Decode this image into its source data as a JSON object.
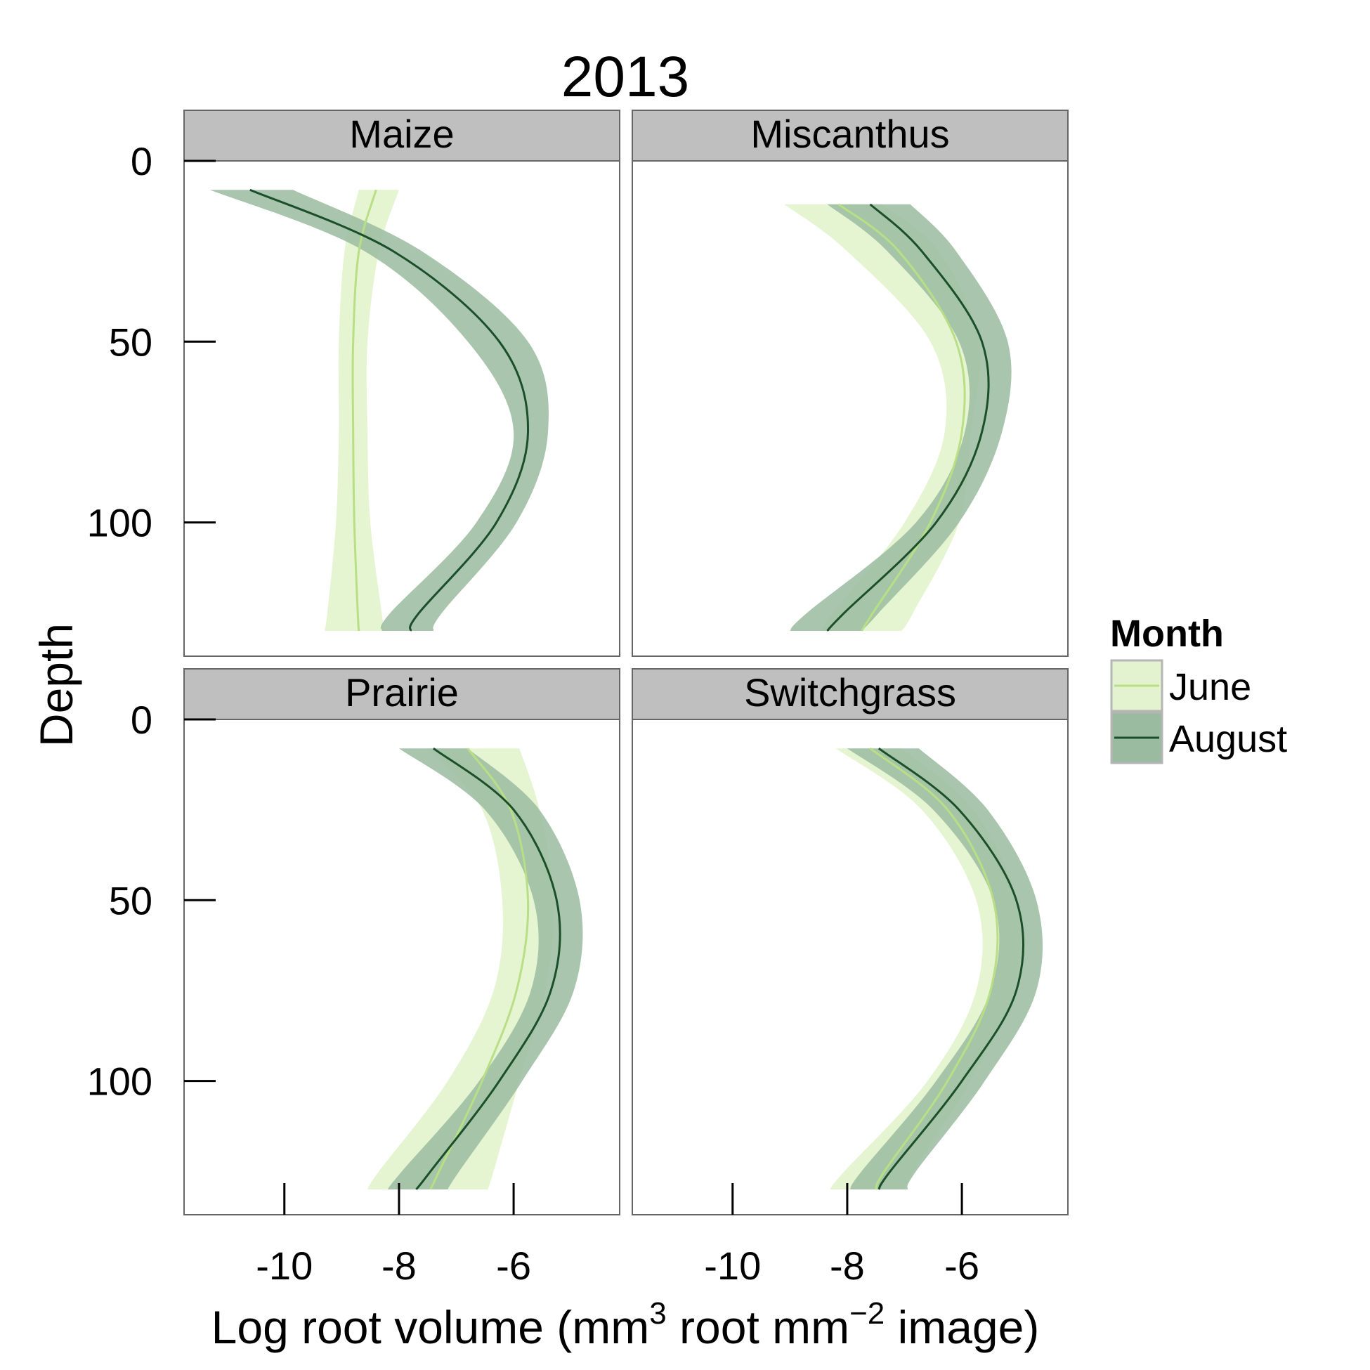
{
  "chart_data": {
    "type": "line",
    "title": "2013",
    "xlabel": {
      "base": "Log root volume (mm",
      "sup1": "3",
      "mid": " root mm",
      "sup2": "−2",
      "end": " image)"
    },
    "ylabel": "Depth",
    "xlim": [
      -11.75,
      -4.15
    ],
    "ylim": [
      0,
      137
    ],
    "y_reversed": true,
    "x_ticks": [
      -10,
      -8,
      -6
    ],
    "y_ticks": [
      0,
      50,
      100
    ],
    "legend": {
      "title": "Month",
      "position": "right",
      "items": [
        {
          "name": "June",
          "line": "#b9df86",
          "fill": "#e4f3cf"
        },
        {
          "name": "August",
          "line": "#1b4f2a",
          "fill": "#9bbba0"
        }
      ]
    },
    "panels": [
      {
        "name": "Maize",
        "series": [
          {
            "name": "June",
            "depth": [
              8,
              25,
              50,
              75,
              100,
              125,
              130
            ],
            "x": [
              -8.4,
              -8.7,
              -8.8,
              -8.8,
              -8.78,
              -8.72,
              -8.7
            ],
            "lower": [
              -8.7,
              -8.95,
              -9.05,
              -9.05,
              -9.1,
              -9.25,
              -9.3
            ],
            "upper": [
              -8.0,
              -8.35,
              -8.55,
              -8.55,
              -8.5,
              -8.3,
              -8.25
            ]
          },
          {
            "name": "August",
            "depth": [
              8,
              25,
              50,
              75,
              100,
              125,
              130
            ],
            "x": [
              -10.6,
              -8.1,
              -6.25,
              -5.75,
              -6.3,
              -7.65,
              -7.8
            ],
            "lower": [
              -11.3,
              -8.6,
              -6.8,
              -6.0,
              -6.65,
              -8.15,
              -8.3
            ],
            "upper": [
              -9.85,
              -7.6,
              -5.75,
              -5.4,
              -5.95,
              -7.25,
              -7.4
            ]
          }
        ]
      },
      {
        "name": "Miscanthus",
        "series": [
          {
            "name": "June",
            "depth": [
              12,
              25,
              50,
              75,
              100,
              125,
              130
            ],
            "x": [
              -8.15,
              -7.1,
              -6.1,
              -6.0,
              -6.55,
              -7.55,
              -7.75
            ],
            "lower": [
              -9.1,
              -8.0,
              -6.55,
              -6.3,
              -7.0,
              -8.25,
              -8.45
            ],
            "upper": [
              -7.4,
              -6.4,
              -5.7,
              -5.85,
              -6.05,
              -6.85,
              -7.05
            ]
          },
          {
            "name": "August",
            "depth": [
              12,
              25,
              50,
              75,
              100,
              125,
              130
            ],
            "x": [
              -7.6,
              -6.7,
              -5.65,
              -5.65,
              -6.45,
              -8.05,
              -8.35
            ],
            "lower": [
              -8.35,
              -7.3,
              -6.05,
              -5.95,
              -6.8,
              -8.7,
              -9.0
            ],
            "upper": [
              -6.9,
              -6.1,
              -5.2,
              -5.3,
              -6.05,
              -7.45,
              -7.75
            ]
          }
        ]
      },
      {
        "name": "Prairie",
        "series": [
          {
            "name": "June",
            "depth": [
              8,
              25,
              50,
              75,
              100,
              125,
              130
            ],
            "x": [
              -6.8,
              -6.05,
              -5.75,
              -5.95,
              -6.55,
              -7.3,
              -7.45
            ],
            "lower": [
              -7.5,
              -6.55,
              -6.2,
              -6.35,
              -7.15,
              -8.35,
              -8.55
            ],
            "upper": [
              -5.9,
              -5.55,
              -5.3,
              -5.45,
              -5.9,
              -6.35,
              -6.45
            ]
          },
          {
            "name": "August",
            "depth": [
              8,
              25,
              50,
              75,
              100,
              125,
              130
            ],
            "x": [
              -7.4,
              -6.0,
              -5.25,
              -5.35,
              -6.25,
              -7.45,
              -7.7
            ],
            "lower": [
              -8.0,
              -6.5,
              -5.65,
              -5.7,
              -6.6,
              -7.95,
              -8.2
            ],
            "upper": [
              -6.8,
              -5.55,
              -4.85,
              -4.95,
              -5.85,
              -6.95,
              -7.15
            ]
          }
        ]
      },
      {
        "name": "Switchgrass",
        "series": [
          {
            "name": "June",
            "depth": [
              8,
              25,
              50,
              75,
              100,
              125,
              130
            ],
            "x": [
              -7.6,
              -6.25,
              -5.45,
              -5.5,
              -6.25,
              -7.35,
              -7.5
            ],
            "lower": [
              -8.2,
              -6.7,
              -5.75,
              -5.75,
              -6.6,
              -8.05,
              -8.3
            ],
            "upper": [
              -7.05,
              -5.8,
              -5.05,
              -5.1,
              -5.85,
              -6.85,
              -7.0
            ]
          },
          {
            "name": "August",
            "depth": [
              8,
              25,
              50,
              75,
              100,
              125,
              130
            ],
            "x": [
              -7.45,
              -6.05,
              -5.05,
              -5.05,
              -6.0,
              -7.25,
              -7.45
            ],
            "lower": [
              -8.0,
              -6.5,
              -5.45,
              -5.5,
              -6.45,
              -7.75,
              -7.95
            ],
            "upper": [
              -6.75,
              -5.55,
              -4.7,
              -4.7,
              -5.6,
              -6.8,
              -6.95
            ]
          }
        ]
      }
    ]
  }
}
